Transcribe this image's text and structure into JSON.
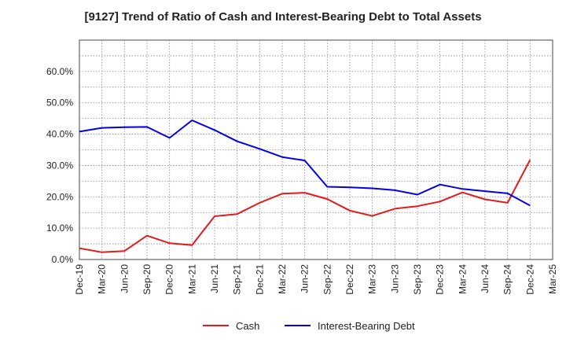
{
  "chart_data": {
    "type": "line",
    "title": "[9127]  Trend of Ratio of Cash and Interest-Bearing Debt to Total Assets",
    "xlabel": "",
    "ylabel": "",
    "ylim": [
      0,
      70
    ],
    "y_ticks": [
      0,
      10,
      20,
      30,
      40,
      50,
      60
    ],
    "y_tick_labels": [
      "0.0%",
      "10.0%",
      "20.0%",
      "30.0%",
      "40.0%",
      "50.0%",
      "60.0%"
    ],
    "x_tick_labels": [
      "Dec-19",
      "Mar-20",
      "Jun-20",
      "Sep-20",
      "Dec-20",
      "Mar-21",
      "Jun-21",
      "Sep-21",
      "Dec-21",
      "Mar-22",
      "Jun-22",
      "Sep-22",
      "Dec-22",
      "Mar-23",
      "Jun-23",
      "Sep-23",
      "Dec-23",
      "Mar-24",
      "Jun-24",
      "Sep-24",
      "Dec-24",
      "Mar-25"
    ],
    "x": [
      "Dec-19",
      "Mar-20",
      "Jun-20",
      "Sep-20",
      "Dec-20",
      "Mar-21",
      "Jun-21",
      "Sep-21",
      "Dec-21",
      "Mar-22",
      "Jun-22",
      "Sep-22",
      "Dec-22",
      "Mar-23",
      "Jun-23",
      "Sep-23",
      "Dec-23",
      "Mar-24",
      "Jun-24",
      "Sep-24",
      "Dec-24"
    ],
    "grid": true,
    "legend_position": "bottom",
    "series": [
      {
        "name": "Cash",
        "color": "#e41a1c",
        "values": [
          3.6,
          2.3,
          2.7,
          7.6,
          5.2,
          4.6,
          13.8,
          14.5,
          18.1,
          21.0,
          21.3,
          19.3,
          15.6,
          13.9,
          16.2,
          17.0,
          18.5,
          21.4,
          19.2,
          18.1,
          31.8
        ]
      },
      {
        "name": "Interest-Bearing Debt",
        "color": "#0000ee",
        "values": [
          40.8,
          42.0,
          42.2,
          42.3,
          38.8,
          44.4,
          41.3,
          37.7,
          35.3,
          32.7,
          31.6,
          23.2,
          23.0,
          22.7,
          22.1,
          20.7,
          23.9,
          22.5,
          21.8,
          21.1,
          17.2
        ]
      }
    ]
  }
}
